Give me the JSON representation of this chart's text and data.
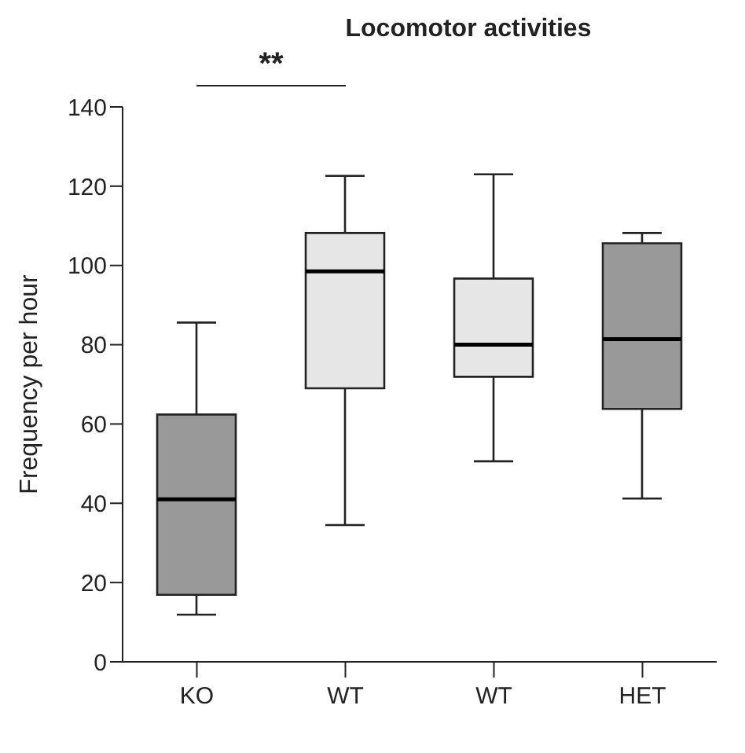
{
  "chart_data": {
    "type": "box",
    "title": "Locomotor activities",
    "ylabel": "Frequency per hour",
    "categories": [
      "KO",
      "WT",
      "WT",
      "HET"
    ],
    "boxes": [
      {
        "low": 11.9,
        "q1": 16.9,
        "median": 41,
        "q3": 62.4,
        "high": 85.6
      },
      {
        "low": 34.5,
        "q1": 69,
        "median": 98.5,
        "q3": 108.2,
        "high": 122.6
      },
      {
        "low": 50.6,
        "q1": 71.9,
        "median": 80,
        "q3": 96.7,
        "high": 123
      },
      {
        "low": 41.2,
        "q1": 63.8,
        "median": 81.4,
        "q3": 105.6,
        "high": 108.2
      }
    ],
    "colors": [
      "#999999",
      "#e6e6e6",
      "#e6e6e6",
      "#999999"
    ],
    "ylim": [
      0,
      140
    ],
    "yticks": [
      0,
      20,
      40,
      60,
      80,
      100,
      120,
      140
    ],
    "annotations": [
      "**"
    ],
    "grid": false,
    "legend": false
  }
}
